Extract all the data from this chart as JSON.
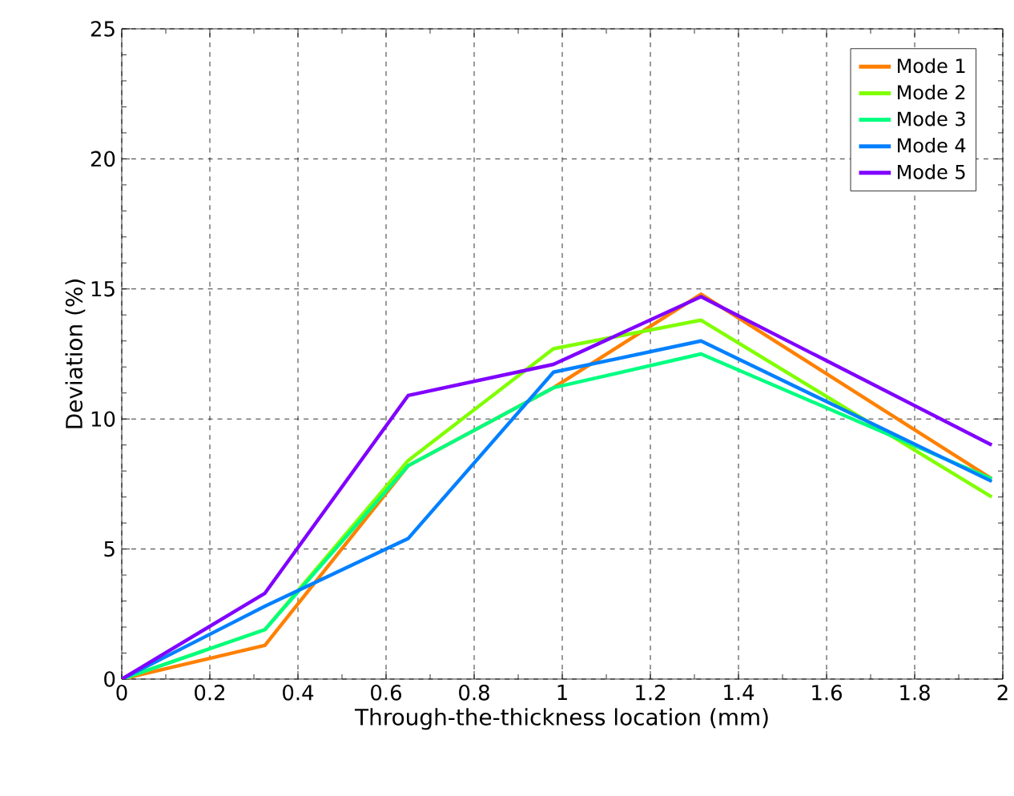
{
  "chart_data": {
    "type": "line",
    "xlabel": "Through-the-thickness location (mm)",
    "ylabel": "Deviation (%)",
    "x": [
      0,
      0.325,
      0.65,
      0.98,
      1.315,
      1.975
    ],
    "series": [
      {
        "name": "Mode 1",
        "color": "#ff8000",
        "values": [
          0,
          1.3,
          8.2,
          11.2,
          14.8,
          7.7
        ]
      },
      {
        "name": "Mode 2",
        "color": "#80ff00",
        "values": [
          0,
          1.9,
          8.4,
          12.7,
          13.8,
          7.0
        ]
      },
      {
        "name": "Mode 3",
        "color": "#00ff80",
        "values": [
          0,
          1.9,
          8.2,
          11.2,
          12.5,
          7.7
        ]
      },
      {
        "name": "Mode 4",
        "color": "#0080ff",
        "values": [
          0,
          2.8,
          5.4,
          11.8,
          13.0,
          7.6
        ]
      },
      {
        "name": "Mode 5",
        "color": "#8000ff",
        "values": [
          0,
          3.3,
          10.9,
          12.1,
          14.7,
          9.0
        ]
      }
    ],
    "xlim": [
      0,
      2
    ],
    "ylim": [
      0,
      25
    ],
    "xticks": [
      0,
      0.2,
      0.4,
      0.6,
      0.8,
      1,
      1.2,
      1.4,
      1.6,
      1.8,
      2
    ],
    "yticks": [
      0,
      5,
      10,
      15,
      20,
      25
    ],
    "grid": true,
    "legend": "top right",
    "marker": "none",
    "line_style": "solid"
  }
}
